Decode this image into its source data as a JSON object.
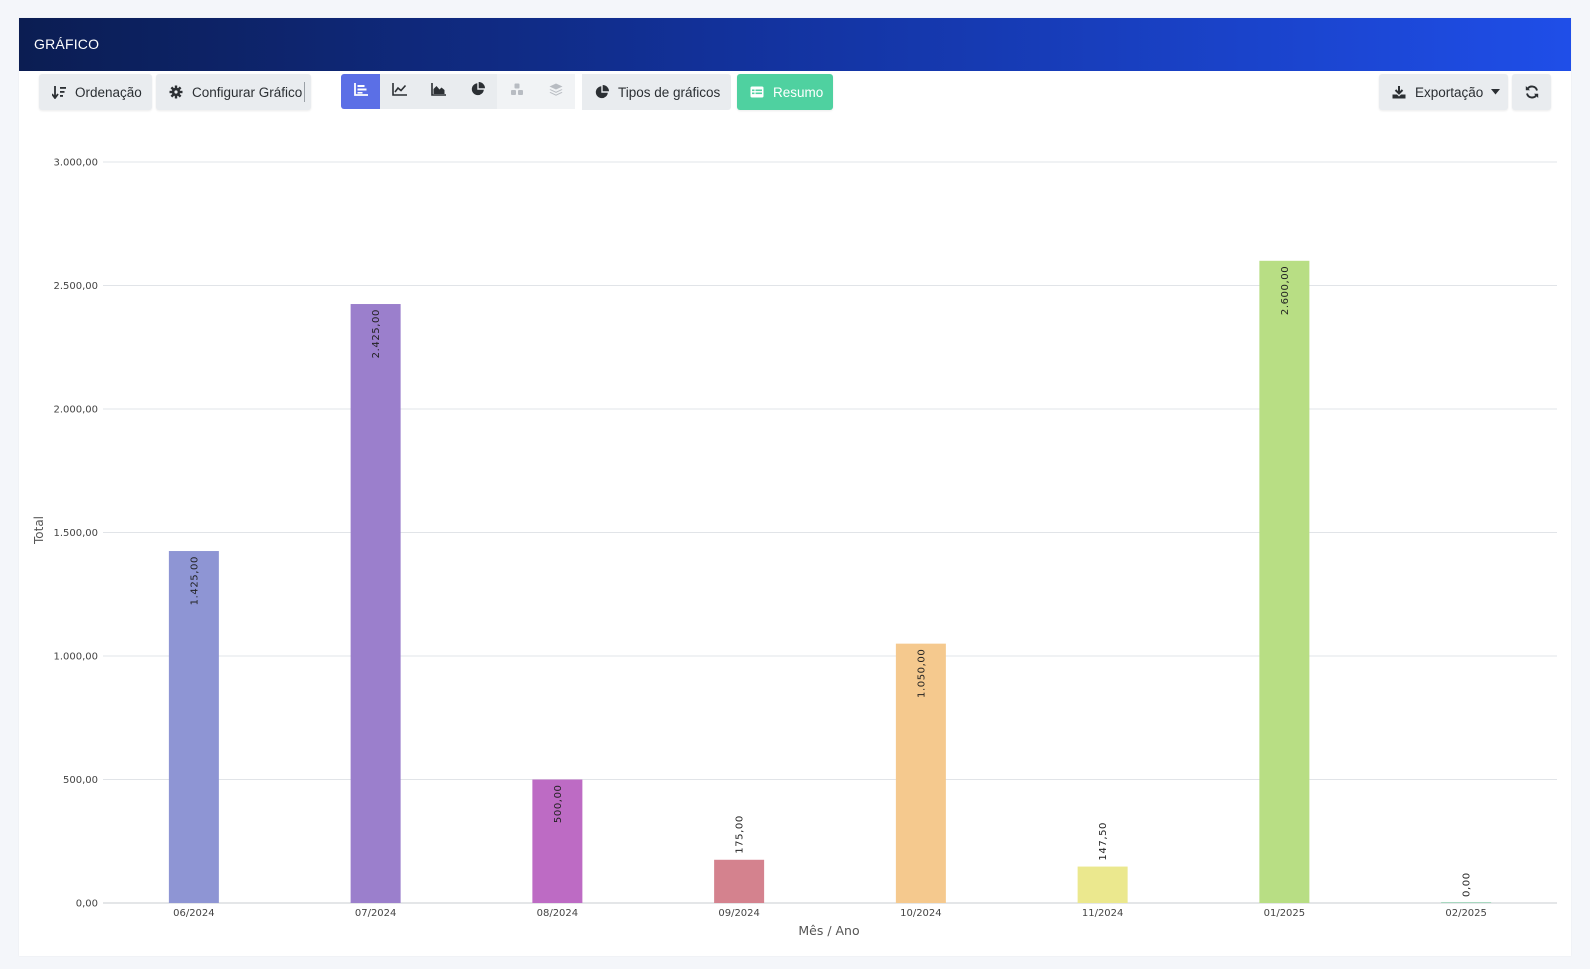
{
  "header": {
    "title": "GRÁFICO"
  },
  "toolbar": {
    "sort_label": "Ordenação",
    "configure_label": "Configurar Gráfico",
    "chart_types_label": "Tipos de gráficos",
    "summary_label": "Resumo",
    "export_label": "Exportação",
    "chart_type_buttons": [
      {
        "icon": "bar-chart-icon",
        "state": "active"
      },
      {
        "icon": "line-chart-icon",
        "state": "enabled"
      },
      {
        "icon": "area-chart-icon",
        "state": "enabled"
      },
      {
        "icon": "pie-chart-icon",
        "state": "enabled"
      },
      {
        "icon": "cubes-icon",
        "state": "disabled"
      },
      {
        "icon": "layers-icon",
        "state": "disabled"
      }
    ]
  },
  "colors": {
    "header_start": "#0b1d52",
    "header_end": "#1f4ee8",
    "active_segment": "#5b6fe6",
    "summary_button": "#4fd1a0"
  },
  "chart_data": {
    "type": "bar",
    "xlabel": "Mês / Ano",
    "ylabel": "Total",
    "ylim": [
      0,
      3000
    ],
    "yticks": [
      0,
      500,
      1000,
      1500,
      2000,
      2500,
      3000
    ],
    "ytick_labels": [
      "0,00",
      "500,00",
      "1.000,00",
      "1.500,00",
      "2.000,00",
      "2.500,00",
      "3.000,00"
    ],
    "grid": true,
    "categories": [
      "06/2024",
      "07/2024",
      "08/2024",
      "09/2024",
      "10/2024",
      "11/2024",
      "01/2025",
      "02/2025"
    ],
    "values": [
      1425,
      2425,
      500,
      175,
      1050,
      147.5,
      2600,
      0
    ],
    "value_labels": [
      "1.425,00",
      "2.425,00",
      "500,00",
      "175,00",
      "1.050,00",
      "147,50",
      "2.600,00",
      "0,00"
    ],
    "bar_colors": [
      "#8e95d4",
      "#9b7fcc",
      "#bd6bc4",
      "#d4828e",
      "#f5c98e",
      "#ebe88e",
      "#b8de84",
      "#a8d8c0"
    ]
  }
}
